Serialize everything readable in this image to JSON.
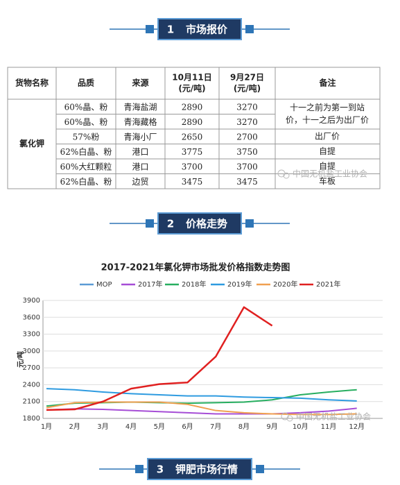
{
  "sections": [
    {
      "number": "1",
      "title": "市场报价"
    },
    {
      "number": "2",
      "title": "价格走势"
    },
    {
      "number": "3",
      "title": "钾肥市场行情"
    }
  ],
  "table": {
    "header": [
      [
        "货物名称"
      ],
      [
        "品质"
      ],
      [
        "来源"
      ],
      [
        "10月11日",
        "(元/吨)"
      ],
      [
        "9月27日",
        "(元/吨)"
      ],
      [
        "备注"
      ]
    ],
    "product": "氯化钾",
    "rows": [
      [
        "60%晶、粉",
        "青海盐湖",
        2890,
        3270
      ],
      [
        "60%晶、粉",
        "青海藏格",
        2890,
        3270
      ],
      [
        "57%粉",
        "青海小厂",
        2650,
        2700
      ],
      [
        "62%白晶、粉",
        "港口",
        3775,
        3750
      ],
      [
        "60%大红颗粒",
        "港口",
        3700,
        3700
      ],
      [
        "62%白晶、粉",
        "边贸",
        3475,
        3475
      ]
    ],
    "notes": [
      [
        "十一之前为第一到站",
        "价，十一之后为出厂价"
      ],
      null,
      [
        "出厂价"
      ],
      [
        "自提"
      ],
      [
        "自提"
      ],
      [
        "车板"
      ]
    ]
  },
  "watermark": "中国无机盐工业协会",
  "chart_data": {
    "type": "line",
    "title": "2017-2021年氯化钾市场批发价格指数走势图",
    "ylabel": "元/吨",
    "categories": [
      "1月",
      "2月",
      "3月",
      "4月",
      "5月",
      "6月",
      "7月",
      "8月",
      "9月",
      "10月",
      "11月",
      "12月"
    ],
    "ylim": [
      1800,
      3900
    ],
    "yticks": [
      1800,
      2100,
      2400,
      2700,
      3000,
      3300,
      3600,
      3900
    ],
    "grid": true,
    "series": [
      {
        "name": "MOP",
        "color": "#5b9bd5",
        "values": [
          null,
          null,
          null,
          null,
          null,
          null,
          null,
          null,
          null,
          null,
          null,
          null
        ]
      },
      {
        "name": "2017年",
        "color": "#a64dd6",
        "values": [
          1950,
          1970,
          1960,
          1940,
          1920,
          1900,
          1880,
          1880,
          1880,
          1900,
          1930,
          1980
        ]
      },
      {
        "name": "2018年",
        "color": "#27ae60",
        "values": [
          2020,
          2070,
          2080,
          2090,
          2080,
          2070,
          2080,
          2090,
          2130,
          2220,
          2270,
          2310
        ]
      },
      {
        "name": "2019年",
        "color": "#2e9be0",
        "values": [
          2330,
          2310,
          2270,
          2240,
          2220,
          2200,
          2200,
          2180,
          2170,
          2160,
          2130,
          2110
        ]
      },
      {
        "name": "2020年",
        "color": "#f0a050",
        "values": [
          1990,
          2080,
          2090,
          2090,
          2090,
          2050,
          1940,
          1900,
          1880,
          1870,
          1870,
          1880
        ]
      },
      {
        "name": "2021年",
        "color": "#e02020",
        "values": [
          1950,
          1960,
          2100,
          2330,
          2410,
          2440,
          2900,
          3780,
          3450,
          null,
          null,
          null
        ]
      }
    ]
  }
}
